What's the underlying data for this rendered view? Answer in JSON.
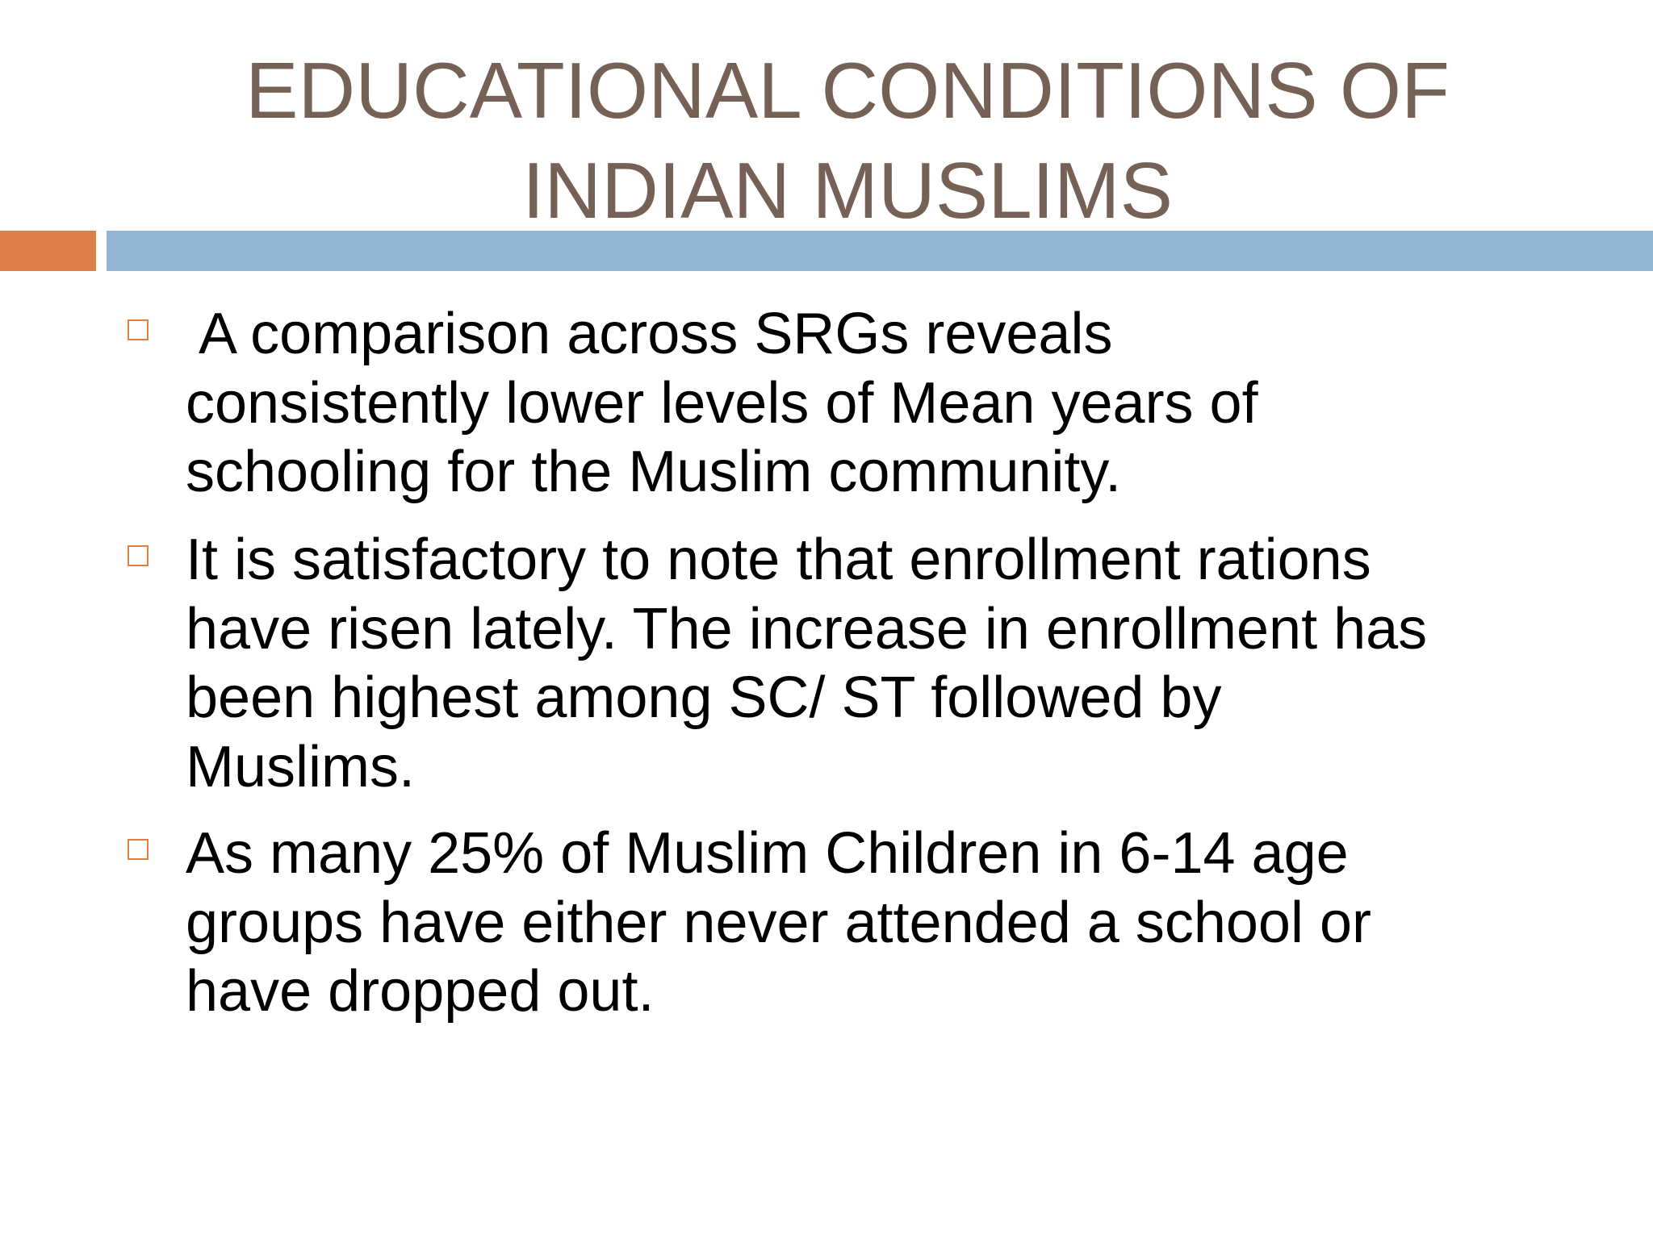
{
  "slide": {
    "title_lines": [
      "EDUCATIONAL CONDITIONS OF",
      "INDIAN MUSLIMS"
    ],
    "colors": {
      "title": "#766156",
      "accent_bar": "#dd8047",
      "main_bar": "#94b6d2",
      "bullet_marker": "#dd8047",
      "body_text": "#000000"
    },
    "bullets": [
      {
        "lines": [
          " A comparison across SRGs reveals",
          "consistently lower levels of Mean years of",
          "schooling for the Muslim community."
        ]
      },
      {
        "lines": [
          "It is satisfactory to note that enrollment rations",
          "have risen lately. The increase in enrollment has",
          "been highest among SC/ ST followed by",
          "Muslims."
        ]
      },
      {
        "lines": [
          "As many 25% of Muslim Children in 6-14 age",
          "groups have either never attended a school or",
          "have dropped out."
        ]
      }
    ],
    "bullet_marker_icon": "hollow-square-icon"
  }
}
